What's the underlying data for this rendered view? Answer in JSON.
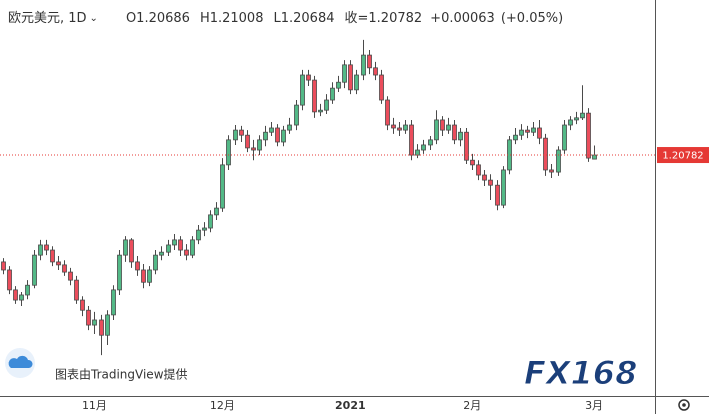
{
  "chart_data": {
    "type": "candlestick",
    "header": {
      "symbol_label": "欧元美元, 1D",
      "ohlc_prefixes": [
        "O",
        "H",
        "L",
        "收="
      ],
      "change_label": "+0.00063",
      "change_pct_label": "(+0.05%)"
    },
    "credit": "图表由TradingView提供",
    "watermark": "FX168",
    "up_color": "#53b987",
    "down_color": "#eb4d5c",
    "price_line_color": "#e53935",
    "ylim": [
      1.1512,
      1.2444
    ],
    "categories": [
      null,
      null,
      null,
      null,
      null,
      null,
      null,
      null,
      null,
      null,
      null,
      null,
      null,
      null,
      null,
      "11月",
      null,
      null,
      null,
      null,
      null,
      null,
      null,
      null,
      null,
      null,
      null,
      null,
      null,
      null,
      null,
      null,
      null,
      null,
      null,
      null,
      "12月",
      null,
      null,
      null,
      null,
      null,
      null,
      null,
      null,
      null,
      null,
      null,
      null,
      null,
      null,
      null,
      null,
      null,
      null,
      null,
      null,
      "2021",
      null,
      null,
      null,
      null,
      null,
      null,
      null,
      null,
      null,
      null,
      null,
      null,
      null,
      null,
      null,
      null,
      null,
      null,
      null,
      "2月",
      null,
      null,
      null,
      null,
      null,
      null,
      null,
      null,
      null,
      null,
      null,
      null,
      null,
      null,
      null,
      null,
      null,
      null,
      null,
      "3月"
    ],
    "open": [
      1.1826,
      1.1807,
      1.176,
      1.1736,
      1.1748,
      1.1771,
      1.1842,
      1.1866,
      1.1854,
      1.1826,
      1.1819,
      1.1802,
      1.1783,
      1.1736,
      1.1712,
      1.1677,
      1.1689,
      1.1653,
      1.1701,
      1.176,
      1.1842,
      1.1878,
      1.1826,
      1.1807,
      1.1778,
      1.1807,
      1.1842,
      1.1849,
      1.1866,
      1.1878,
      1.1854,
      1.1842,
      1.1878,
      1.1901,
      1.1906,
      1.1937,
      1.1953,
      1.2055,
      1.2114,
      1.2137,
      1.2125,
      1.2095,
      1.209,
      1.2114,
      1.2132,
      1.2142,
      1.2109,
      1.2137,
      1.2149,
      1.2196,
      1.2267,
      1.2255,
      1.218,
      1.2184,
      1.2208,
      1.2236,
      1.225,
      1.2291,
      1.2232,
      1.2267,
      1.2314,
      1.2284,
      1.2267,
      1.2208,
      1.2149,
      1.2142,
      1.2137,
      1.2149,
      1.2078,
      1.209,
      1.2102,
      1.2114,
      1.2161,
      1.2137,
      1.2149,
      1.2114,
      1.2132,
      1.2066,
      1.2055,
      1.2031,
      1.2019,
      1.2007,
      1.196,
      1.2043,
      1.2114,
      1.2125,
      1.2137,
      1.2132,
      1.2142,
      1.2118,
      1.2043,
      1.2038,
      1.209,
      1.2149,
      1.2161,
      1.2166,
      1.2177,
      1.20686
    ],
    "high": [
      1.1835,
      1.1816,
      1.1769,
      1.1755,
      1.1783,
      1.1854,
      1.1878,
      1.1878,
      1.1863,
      1.184,
      1.183,
      1.1812,
      1.1793,
      1.1745,
      1.1722,
      1.1708,
      1.1701,
      1.1712,
      1.1771,
      1.1854,
      1.1887,
      1.1882,
      1.184,
      1.1821,
      1.1816,
      1.1854,
      1.1863,
      1.1878,
      1.1892,
      1.1887,
      1.1868,
      1.1887,
      1.1913,
      1.192,
      1.1948,
      1.1967,
      1.2071,
      1.2125,
      1.2149,
      1.2147,
      1.2137,
      1.2114,
      1.2125,
      1.2147,
      1.2156,
      1.2151,
      1.2147,
      1.2166,
      1.2208,
      1.2279,
      1.2279,
      1.2265,
      1.2199,
      1.2222,
      1.225,
      1.2265,
      1.2302,
      1.2302,
      1.2279,
      1.235,
      1.2326,
      1.2298,
      1.2279,
      1.2217,
      1.2166,
      1.2156,
      1.2161,
      1.2161,
      1.2104,
      1.2114,
      1.2123,
      1.2184,
      1.217,
      1.2166,
      1.2161,
      1.2142,
      1.2142,
      1.2081,
      1.2066,
      1.2043,
      1.2033,
      1.2019,
      1.2052,
      1.2123,
      1.2142,
      1.2151,
      1.2147,
      1.2156,
      1.2161,
      1.2128,
      1.2057,
      1.2099,
      1.2161,
      1.217,
      1.218,
      1.2243,
      1.2189,
      1.21008
    ],
    "low": [
      1.1797,
      1.175,
      1.1727,
      1.1722,
      1.1738,
      1.1764,
      1.183,
      1.1842,
      1.1816,
      1.1807,
      1.1793,
      1.1771,
      1.1727,
      1.1698,
      1.1665,
      1.1656,
      1.1606,
      1.163,
      1.1689,
      1.1748,
      1.1826,
      1.1812,
      1.1793,
      1.1764,
      1.1769,
      1.1797,
      1.183,
      1.184,
      1.1854,
      1.184,
      1.183,
      1.1835,
      1.1868,
      1.1887,
      1.1896,
      1.1925,
      1.1944,
      1.2043,
      1.2102,
      1.2109,
      1.2085,
      1.2066,
      1.2078,
      1.2099,
      1.2123,
      1.2099,
      1.2099,
      1.2128,
      1.2137,
      1.2184,
      1.2241,
      1.2166,
      1.217,
      1.2175,
      1.2199,
      1.2227,
      1.2236,
      1.2222,
      1.2222,
      1.2255,
      1.2269,
      1.2255,
      1.2199,
      1.2137,
      1.2128,
      1.2123,
      1.2128,
      1.2066,
      1.2071,
      1.2081,
      1.209,
      1.2104,
      1.2123,
      1.2128,
      1.2104,
      1.2099,
      1.2057,
      1.2043,
      1.2019,
      1.2005,
      1.1972,
      1.1948,
      1.1953,
      1.2033,
      1.2104,
      1.2114,
      1.2118,
      1.2123,
      1.2104,
      1.2029,
      1.2024,
      1.2029,
      1.2081,
      1.2137,
      1.2151,
      1.2161,
      1.2062,
      1.20684
    ],
    "close": [
      1.1807,
      1.176,
      1.1736,
      1.1748,
      1.1771,
      1.1842,
      1.1866,
      1.1854,
      1.1826,
      1.1819,
      1.1802,
      1.1783,
      1.1736,
      1.1712,
      1.1677,
      1.1689,
      1.1653,
      1.1701,
      1.176,
      1.1842,
      1.1878,
      1.1826,
      1.1807,
      1.1778,
      1.1807,
      1.1842,
      1.1849,
      1.1866,
      1.1878,
      1.1854,
      1.1842,
      1.1878,
      1.1901,
      1.1906,
      1.1937,
      1.1953,
      1.2055,
      1.2114,
      1.2137,
      1.2125,
      1.2095,
      1.209,
      1.2114,
      1.2132,
      1.2142,
      1.2109,
      1.2137,
      1.2149,
      1.2196,
      1.2267,
      1.2255,
      1.218,
      1.2184,
      1.2208,
      1.2236,
      1.225,
      1.2291,
      1.2232,
      1.2267,
      1.2314,
      1.2284,
      1.2267,
      1.2208,
      1.2149,
      1.2142,
      1.2137,
      1.2149,
      1.2078,
      1.209,
      1.2102,
      1.2114,
      1.2161,
      1.2137,
      1.2149,
      1.2114,
      1.2132,
      1.2066,
      1.2055,
      1.2031,
      1.2019,
      1.2007,
      1.196,
      1.2043,
      1.2114,
      1.2125,
      1.2137,
      1.2132,
      1.2142,
      1.2118,
      1.2043,
      1.2038,
      1.209,
      1.2149,
      1.2161,
      1.2166,
      1.2177,
      1.2071,
      1.20782
    ]
  }
}
